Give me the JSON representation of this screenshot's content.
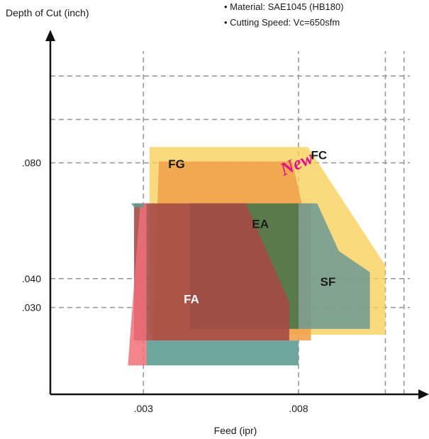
{
  "chart_data": {
    "type": "area",
    "title": "",
    "xlabel": "Feed (ipr)",
    "ylabel": "Depth of Cut (inch)",
    "x_ticks": [
      {
        "value": 0.003,
        "label": ".003"
      },
      {
        "value": 0.008,
        "label": ".008"
      }
    ],
    "y_ticks": [
      {
        "value": 0.03,
        "label": ".030"
      },
      {
        "value": 0.04,
        "label": ".040"
      },
      {
        "value": 0.08,
        "label": ".080"
      }
    ],
    "x_gridlines": [
      0.003,
      0.008,
      0.0108,
      0.0114
    ],
    "y_gridlines": [
      0.03,
      0.04,
      0.08,
      0.095,
      0.11
    ],
    "xlim": [
      0.0,
      0.012
    ],
    "ylim": [
      0.0,
      0.125
    ],
    "grid": true,
    "conditions": [
      "• Material: SAE1045 (HB180)",
      "• Cutting Speed: Vc=650sfm"
    ],
    "annotation": {
      "text": "New",
      "color": "#e0118a"
    },
    "regions": [
      {
        "name": "FC",
        "color": "#f9cf57",
        "opacity": 0.78,
        "label_pos": [
          0.0084,
          0.0812
        ],
        "points": [
          [
            0.0032,
            0.0855
          ],
          [
            0.0083,
            0.0855
          ],
          [
            0.0108,
            0.0445
          ],
          [
            0.0108,
            0.0206
          ],
          [
            0.0032,
            0.0206
          ]
        ]
      },
      {
        "name": "FG",
        "color": "#f0a04b",
        "opacity": 0.88,
        "label_pos": [
          0.0038,
          0.0782
        ],
        "points": [
          [
            0.0035,
            0.0805
          ],
          [
            0.0078,
            0.0805
          ],
          [
            0.0081,
            0.066
          ],
          [
            0.0084,
            0.066
          ],
          [
            0.0084,
            0.0186
          ],
          [
            0.0033,
            0.0186
          ]
        ]
      },
      {
        "name": "SF",
        "color": "#6c9a94",
        "opacity": 0.86,
        "label_pos": [
          0.0087,
          0.0375
        ],
        "points": [
          [
            0.008,
            0.066
          ],
          [
            0.0086,
            0.066
          ],
          [
            0.0093,
            0.0495
          ],
          [
            0.0103,
            0.0422
          ],
          [
            0.0103,
            0.0226
          ],
          [
            0.008,
            0.0226
          ]
        ]
      },
      {
        "name": "EA",
        "color": "#44734a",
        "opacity": 0.88,
        "label_pos": [
          0.0065,
          0.0575
        ],
        "points": [
          [
            0.0045,
            0.066
          ],
          [
            0.008,
            0.066
          ],
          [
            0.008,
            0.0226
          ],
          [
            0.0045,
            0.0226
          ]
        ]
      },
      {
        "name": "FA",
        "color": "#a44a45",
        "opacity": 0.9,
        "label_pos": [
          0.0043,
          0.0315
        ],
        "points": [
          [
            0.0027,
            0.066
          ],
          [
            0.0063,
            0.066
          ],
          [
            0.0077,
            0.0316
          ],
          [
            0.0077,
            0.0186
          ],
          [
            0.0027,
            0.0186
          ]
        ]
      },
      {
        "name": "",
        "color": "#f06e78",
        "opacity": 0.85,
        "label_pos": null,
        "points": [
          [
            0.0029,
            0.066
          ],
          [
            0.0031,
            0.066
          ],
          [
            0.0031,
            0.01
          ],
          [
            0.0025,
            0.01
          ]
        ]
      },
      {
        "name": "",
        "color": "#5e9c90",
        "opacity": 0.85,
        "label_pos": null,
        "points": [
          [
            0.0026,
            0.066
          ],
          [
            0.003,
            0.066
          ],
          [
            0.003,
            0.0646
          ],
          [
            0.0027,
            0.0646
          ]
        ]
      },
      {
        "name": "",
        "color": "#5e9c90",
        "opacity": 0.9,
        "label_pos": null,
        "points": [
          [
            0.0031,
            0.0186
          ],
          [
            0.008,
            0.0186
          ],
          [
            0.008,
            0.01
          ],
          [
            0.0031,
            0.01
          ]
        ]
      }
    ]
  }
}
